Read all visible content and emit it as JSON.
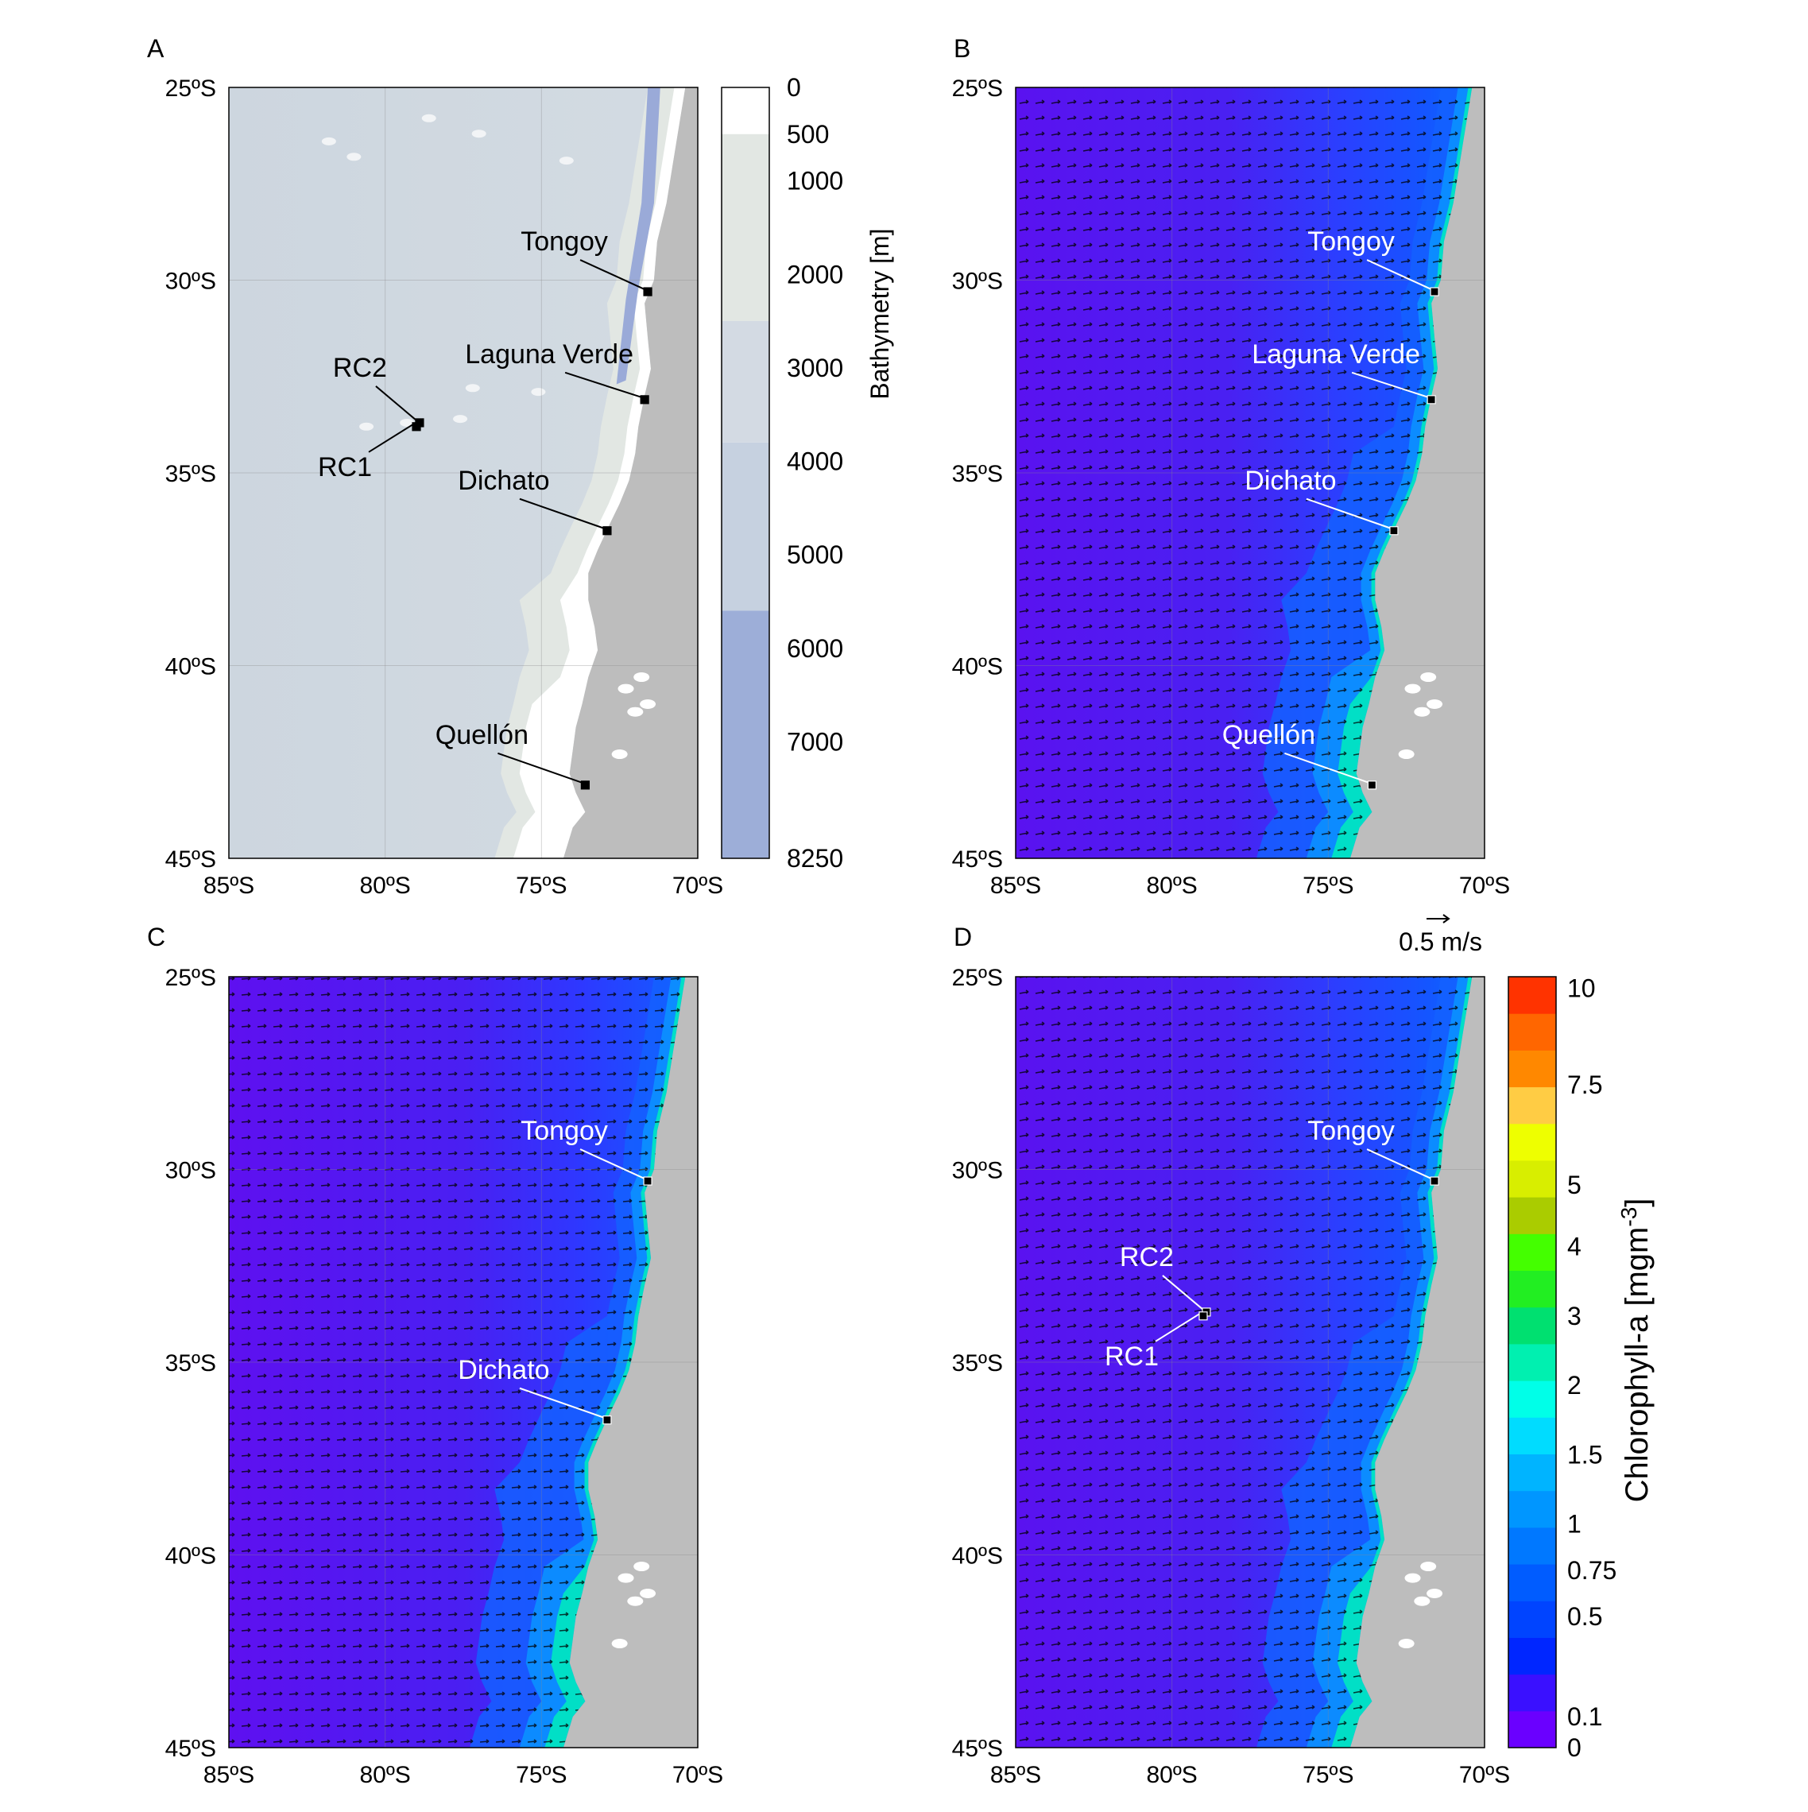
{
  "figure": {
    "x_ticks": [
      "85ºS",
      "80ºS",
      "75ºS",
      "70ºS"
    ],
    "y_ticks": [
      "25ºS",
      "30ºS",
      "35ºS",
      "40ºS",
      "45ºS"
    ],
    "x_tick_values": [
      -85,
      -80,
      -75,
      -70
    ],
    "y_tick_values": [
      -25,
      -30,
      -35,
      -40,
      -45
    ],
    "xlim": [
      -85,
      -70
    ],
    "ylim": [
      -45,
      -25
    ],
    "colors": {
      "land": "#bdbdbd",
      "ocean_deep": "#5a1ee6",
      "shelf_blue": "#1a4dff",
      "bathy_shallow": "#ffffff",
      "bathy_mid": "#dde3ea",
      "bathy_abyss": "#cfd7e0",
      "trench": "#9aaad8"
    }
  },
  "panels": [
    {
      "id": "A",
      "letter": "A",
      "type": "bathymetry",
      "labels": [
        {
          "name": "Tongoy",
          "lon": -71.6,
          "lat": -30.3
        },
        {
          "name": "Laguna Verde",
          "lon": -71.7,
          "lat": -33.1
        },
        {
          "name": "Dichato",
          "lon": -72.9,
          "lat": -36.5
        },
        {
          "name": "Quellón",
          "lon": -73.6,
          "lat": -43.1
        },
        {
          "name": "RC2",
          "lon": -78.9,
          "lat": -33.7
        },
        {
          "name": "RC1",
          "lon": -79.0,
          "lat": -33.8
        }
      ]
    },
    {
      "id": "B",
      "letter": "B",
      "type": "chlorophyll",
      "labels": [
        {
          "name": "Tongoy",
          "lon": -71.6,
          "lat": -30.3
        },
        {
          "name": "Laguna Verde",
          "lon": -71.7,
          "lat": -33.1
        },
        {
          "name": "Dichato",
          "lon": -72.9,
          "lat": -36.5
        },
        {
          "name": "Quellón",
          "lon": -73.6,
          "lat": -43.1
        }
      ]
    },
    {
      "id": "C",
      "letter": "C",
      "type": "chlorophyll",
      "labels": [
        {
          "name": "Tongoy",
          "lon": -71.6,
          "lat": -30.3
        },
        {
          "name": "Dichato",
          "lon": -72.9,
          "lat": -36.5
        }
      ]
    },
    {
      "id": "D",
      "letter": "D",
      "type": "chlorophyll",
      "labels": [
        {
          "name": "Tongoy",
          "lon": -71.6,
          "lat": -30.3
        },
        {
          "name": "RC2",
          "lon": -78.9,
          "lat": -33.7
        },
        {
          "name": "RC1",
          "lon": -79.0,
          "lat": -33.8
        }
      ]
    }
  ],
  "bathymetry_colorbar": {
    "label": "Bathymetry [m]",
    "ticks": [
      "0",
      "500",
      "1000",
      "2000",
      "3000",
      "4000",
      "5000",
      "6000",
      "7000",
      "8250"
    ],
    "bands": [
      {
        "from": 0,
        "to": 500,
        "color": "#ffffff"
      },
      {
        "from": 500,
        "to": 2500,
        "color": "#e2e7e3"
      },
      {
        "from": 2500,
        "to": 3800,
        "color": "#d3dae3"
      },
      {
        "from": 3800,
        "to": 5600,
        "color": "#c6d1e0"
      },
      {
        "from": 5600,
        "to": 8250,
        "color": "#9daed8"
      }
    ]
  },
  "chlorophyll_colorbar": {
    "label": "Chlorophyll-a [mgm",
    "label_sup": "-3",
    "label_end": "]",
    "ticks": [
      "0",
      "0.1",
      "0.5",
      "0.75",
      "1",
      "1.5",
      "2",
      "3",
      "4",
      "5",
      "7.5",
      "10"
    ],
    "colors": [
      "#6a00ff",
      "#3a10ff",
      "#0026ff",
      "#0044ff",
      "#005cff",
      "#0078ff",
      "#0096ff",
      "#00b4ff",
      "#00dcff",
      "#00ffe8",
      "#00f0b0",
      "#00e070",
      "#22ee22",
      "#44ff00",
      "#aacc00",
      "#d8ee00",
      "#eeff00",
      "#ffcc44",
      "#ff8800",
      "#ff6600",
      "#ff3300"
    ]
  },
  "vector_scale": {
    "label": "0.5 m/s",
    "value_ms": 0.5
  }
}
